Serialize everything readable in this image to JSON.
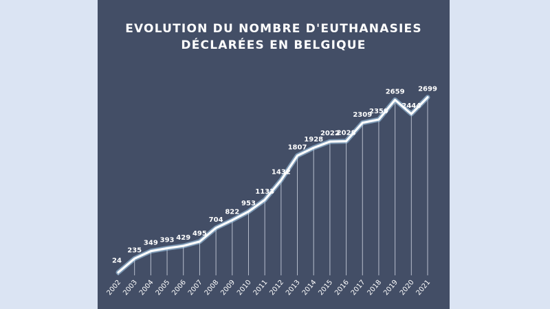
{
  "chart_data": {
    "type": "line",
    "title": "EVOLUTION DU NOMBRE D'EUTHANASIES",
    "subtitle": "DÉCLARÉES EN BELGIQUE",
    "xlabel": "",
    "ylabel": "",
    "x": [
      "2002",
      "2003",
      "2004",
      "2005",
      "2006",
      "2007",
      "2008",
      "2009",
      "2010",
      "2011",
      "2012",
      "2013",
      "2014",
      "2015",
      "2016",
      "2017",
      "2018",
      "2019",
      "2020",
      "2021"
    ],
    "values": [
      24,
      235,
      349,
      393,
      429,
      495,
      704,
      822,
      953,
      1133,
      1432,
      1807,
      1928,
      2022,
      2028,
      2309,
      2359,
      2659,
      2444,
      2699
    ],
    "value_labels": [
      "24",
      "235",
      "349",
      "393",
      "429",
      "495",
      "704",
      "822",
      "953",
      "1133",
      "1432",
      "1807",
      "1928",
      "2022",
      "2028",
      "2309",
      "2359",
      "2659",
      "2444",
      "2699"
    ],
    "ylim": [
      0,
      2800
    ],
    "grid": false,
    "legend": "none",
    "colors": {
      "background": "#434e66",
      "line": "#ffffff",
      "glow": "#b8d8f0",
      "page": "#dbe4f3"
    }
  }
}
